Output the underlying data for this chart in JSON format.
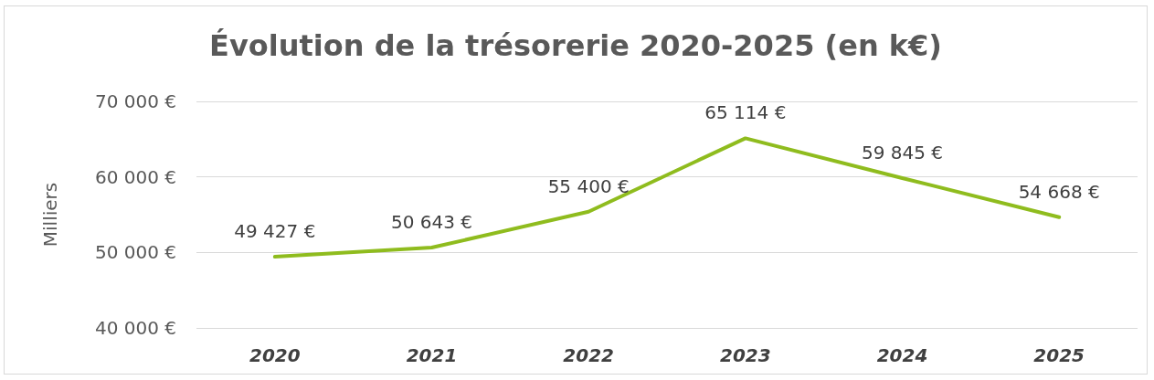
{
  "chart_data": {
    "type": "line",
    "title": "Évolution de la trésorerie 2020-2025 (en k€)",
    "ylabel": "Milliers",
    "categories": [
      "2020",
      "2021",
      "2022",
      "2023",
      "2024",
      "2025"
    ],
    "series": [
      {
        "color": "#8fbc1e",
        "values": [
          49427,
          50643,
          55400,
          65114,
          59845,
          54668
        ],
        "value_labels": [
          "49 427 €",
          "50 643 €",
          "55 400 €",
          "65 114 €",
          "59 845 €",
          "54 668 €"
        ]
      }
    ],
    "ylim": [
      40000,
      70000
    ],
    "yticks": [
      {
        "value": 40000,
        "label": "40 000 €"
      },
      {
        "value": 50000,
        "label": "50 000 €"
      },
      {
        "value": 60000,
        "label": "60 000 €"
      },
      {
        "value": 70000,
        "label": "70 000 €"
      }
    ],
    "grid": "y",
    "marker": "none",
    "line_style": "solid"
  }
}
